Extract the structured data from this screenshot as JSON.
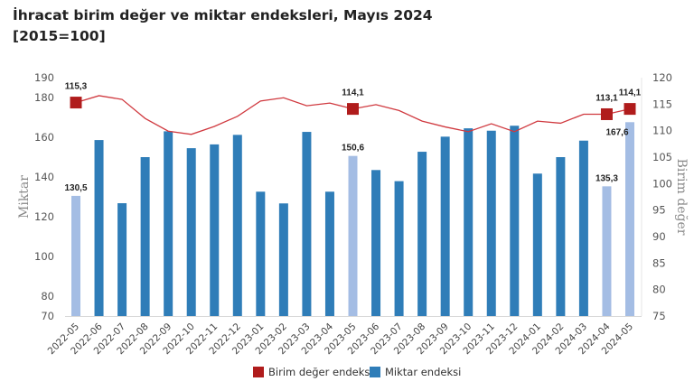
{
  "chart_data": {
    "type": "bar+line",
    "title": "İhracat birim değer ve miktar endeksleri, Mayıs 2024",
    "subtitle": "[2015=100]",
    "categories": [
      "2022-05",
      "2022-06",
      "2022-07",
      "2022-08",
      "2022-09",
      "2022-10",
      "2022-11",
      "2022-12",
      "2023-01",
      "2023-02",
      "2023-03",
      "2023-04",
      "2023-05",
      "2023-06",
      "2023-07",
      "2023-08",
      "2023-09",
      "2023-10",
      "2023-11",
      "2023-12",
      "2024-01",
      "2024-02",
      "2024-03",
      "2024-04",
      "2024-05"
    ],
    "y_left": {
      "label": "Miktar",
      "range": [
        70,
        190
      ],
      "ticks": [
        70,
        80,
        100,
        120,
        140,
        160,
        180,
        190
      ]
    },
    "y_right": {
      "label": "Birim değer",
      "range": [
        75,
        120
      ],
      "ticks": [
        75,
        80,
        85,
        90,
        95,
        100,
        105,
        110,
        115,
        120
      ]
    },
    "grid": false,
    "legend_position": "bottom",
    "series": [
      {
        "name": "Birim değer endeksi",
        "type": "line",
        "axis": "right",
        "color": "#d0393f",
        "marker_color": "#b01c1c",
        "values": [
          115.3,
          116.6,
          115.9,
          112.3,
          109.9,
          109.3,
          110.8,
          112.7,
          115.6,
          116.2,
          114.7,
          115.2,
          114.1,
          114.9,
          113.8,
          111.8,
          110.7,
          109.8,
          111.3,
          109.8,
          111.8,
          111.4,
          113.1,
          113.1,
          114.1
        ],
        "highlighted": {
          "0": "115,3",
          "12": "114,1",
          "23": "113,1",
          "24": "114,1"
        }
      },
      {
        "name": "Miktar endeksi",
        "type": "bar",
        "axis": "left",
        "color": "#2f7db8",
        "highlight_color": "#a4bde4",
        "values": [
          130.5,
          158.6,
          126.8,
          150.0,
          163.0,
          154.5,
          156.4,
          161.2,
          132.6,
          126.7,
          162.7,
          132.6,
          150.6,
          143.5,
          137.9,
          152.7,
          160.3,
          164.5,
          163.3,
          165.8,
          141.7,
          150.0,
          158.3,
          135.3,
          167.6
        ],
        "highlighted": {
          "0": "130,5",
          "12": "150,6",
          "23": "135,3",
          "24": "167,6"
        }
      }
    ]
  }
}
